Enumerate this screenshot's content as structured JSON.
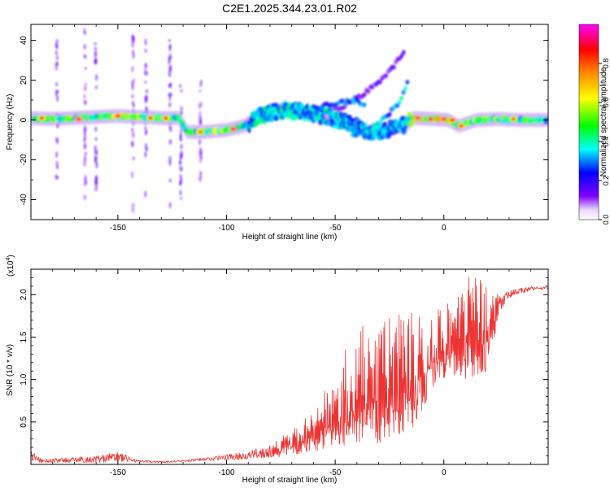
{
  "figure": {
    "title": "C2E1.2025.344.23.01.R02"
  },
  "chart_data": [
    {
      "type": "heatmap",
      "title": "C2E1.2025.344.23.01.R02",
      "xlabel": "Height of straight line (km)",
      "ylabel": "Frequency (Hz)",
      "xlim": [
        -190,
        48
      ],
      "ylim": [
        -50,
        48
      ],
      "xticks": [
        -150,
        -100,
        -50,
        0
      ],
      "xtick_labels": [
        "-150",
        "-100",
        "-50",
        "0"
      ],
      "yticks": [
        -40,
        -20,
        0,
        20,
        40
      ],
      "ytick_labels": [
        "-40",
        "-20",
        "0",
        "20",
        "40"
      ],
      "grid": false,
      "colorbar": {
        "label": "Normalized spectral amplitude",
        "range": [
          0,
          1
        ],
        "ticks": [
          0.0,
          0.2,
          0.4,
          0.6,
          0.8
        ],
        "tick_labels": [
          "0.0",
          "0.2",
          "0.4",
          "0.6",
          "0.8"
        ],
        "colormap": [
          "#ffffff",
          "#7f00ff",
          "#0000ff",
          "#00ffff",
          "#00ff00",
          "#ffff00",
          "#ff8000",
          "#ff0000",
          "#ff00ff"
        ]
      },
      "ridge": [
        {
          "x": -190,
          "y": 1.0,
          "a": 0.5
        },
        {
          "x": -180,
          "y": 0.5,
          "a": 0.55
        },
        {
          "x": -170,
          "y": 1.0,
          "a": 0.55
        },
        {
          "x": -160,
          "y": 1.5,
          "a": 0.5
        },
        {
          "x": -150,
          "y": 2.0,
          "a": 0.6
        },
        {
          "x": -140,
          "y": 1.5,
          "a": 0.55
        },
        {
          "x": -130,
          "y": 1.0,
          "a": 0.6
        },
        {
          "x": -122,
          "y": 1.0,
          "a": 0.45
        },
        {
          "x": -118,
          "y": -6.0,
          "a": 0.45
        },
        {
          "x": -110,
          "y": -6.0,
          "a": 0.55
        },
        {
          "x": -100,
          "y": -5.0,
          "a": 0.55
        },
        {
          "x": -92,
          "y": -3.0,
          "a": 0.4
        },
        {
          "x": -85,
          "y": 2.0,
          "a": 0.4
        },
        {
          "x": -75,
          "y": 5.0,
          "a": 0.4
        },
        {
          "x": -65,
          "y": 4.0,
          "a": 0.35
        },
        {
          "x": -55,
          "y": 2.0,
          "a": 0.4
        },
        {
          "x": -45,
          "y": -1.0,
          "a": 0.35
        },
        {
          "x": -35,
          "y": -6.0,
          "a": 0.35
        },
        {
          "x": -25,
          "y": -5.0,
          "a": 0.35
        },
        {
          "x": -17,
          "y": -2.0,
          "a": 0.35
        },
        {
          "x": -14,
          "y": 1.0,
          "a": 0.7
        },
        {
          "x": -5,
          "y": 0.5,
          "a": 0.7
        },
        {
          "x": 2,
          "y": 0.0,
          "a": 0.65
        },
        {
          "x": 7,
          "y": -3.0,
          "a": 0.55
        },
        {
          "x": 15,
          "y": 0.0,
          "a": 0.55
        },
        {
          "x": 25,
          "y": 0.5,
          "a": 0.55
        },
        {
          "x": 35,
          "y": 0.0,
          "a": 0.5
        },
        {
          "x": 48,
          "y": 0.0,
          "a": 0.45
        }
      ],
      "branches": [
        {
          "x": [
            -50,
            -38,
            -30,
            -24,
            -18
          ],
          "y": [
            5,
            12,
            19,
            26,
            34
          ],
          "a": 0.15
        },
        {
          "x": [
            -42,
            -32,
            -26,
            -20,
            -16
          ],
          "y": [
            -8,
            -4,
            2,
            10,
            20
          ],
          "a": 0.35
        },
        {
          "x": [
            -60,
            -50,
            -42,
            -36
          ],
          "y": [
            6,
            8,
            10,
            8
          ],
          "a": 0.3
        }
      ],
      "hotspots": [
        {
          "x": -185,
          "y": 1,
          "a": 0.85
        },
        {
          "x": -168,
          "y": 0.5,
          "a": 0.95
        },
        {
          "x": -150,
          "y": 2,
          "a": 0.9
        },
        {
          "x": -135,
          "y": 1,
          "a": 0.85
        },
        {
          "x": -128,
          "y": 1,
          "a": 0.85
        },
        {
          "x": -112,
          "y": -6,
          "a": 0.8
        },
        {
          "x": -97,
          "y": -4.5,
          "a": 0.95
        },
        {
          "x": -12,
          "y": 1,
          "a": 0.95
        },
        {
          "x": -6,
          "y": 0.5,
          "a": 0.95
        },
        {
          "x": 0,
          "y": 0.5,
          "a": 0.95
        },
        {
          "x": 4,
          "y": 0,
          "a": 0.9
        },
        {
          "x": 8,
          "y": -3,
          "a": 0.85
        },
        {
          "x": 32,
          "y": 0.5,
          "a": 0.8
        }
      ],
      "vertical_streaks": [
        {
          "x": -178,
          "y": [
            -30,
            40
          ],
          "a": 0.12
        },
        {
          "x": -165,
          "y": [
            -40,
            45
          ],
          "a": 0.1
        },
        {
          "x": -160,
          "y": [
            -48,
            45
          ],
          "a": 0.12
        },
        {
          "x": -143,
          "y": [
            -45,
            45
          ],
          "a": 0.1
        },
        {
          "x": -137,
          "y": [
            -40,
            40
          ],
          "a": 0.12
        },
        {
          "x": -126,
          "y": [
            -48,
            45
          ],
          "a": 0.12
        },
        {
          "x": -121,
          "y": [
            -40,
            20
          ],
          "a": 0.12
        },
        {
          "x": -112,
          "y": [
            -30,
            20
          ],
          "a": 0.08
        }
      ]
    },
    {
      "type": "line",
      "xlabel": "Height of straight line (km)",
      "ylabel": "SNR (10 * v/v)",
      "y_multiplier": "(x10",
      "y_multiplier_exp": "4",
      "xlim": [
        -190,
        48
      ],
      "ylim": [
        0,
        2.3
      ],
      "xticks": [
        -150,
        -100,
        -50,
        0
      ],
      "xtick_labels": [
        "-150",
        "-100",
        "-50",
        "0"
      ],
      "yticks": [
        0.5,
        1.0,
        1.5,
        2.0
      ],
      "ytick_labels": [
        "0.5",
        "1.0",
        "1.5",
        "2.0"
      ],
      "grid": false,
      "color": "#ee3333",
      "envelope": {
        "x": [
          -190,
          -185,
          -175,
          -160,
          -150,
          -140,
          -130,
          -120,
          -110,
          -100,
          -90,
          -80,
          -70,
          -65,
          -60,
          -55,
          -50,
          -45,
          -40,
          -35,
          -30,
          -25,
          -20,
          -15,
          -10,
          -5,
          0,
          5,
          10,
          15,
          20,
          25,
          30,
          35,
          40,
          48
        ],
        "lower": [
          0.02,
          0.02,
          0.02,
          0.02,
          0.03,
          0.02,
          0.02,
          0.03,
          0.04,
          0.05,
          0.06,
          0.08,
          0.1,
          0.12,
          0.15,
          0.18,
          0.2,
          0.22,
          0.25,
          0.25,
          0.25,
          0.25,
          0.3,
          0.4,
          0.6,
          0.9,
          1.0,
          1.0,
          1.0,
          1.0,
          1.1,
          1.7,
          1.95,
          2.0,
          2.05,
          2.06
        ],
        "upper": [
          0.18,
          0.06,
          0.08,
          0.1,
          0.15,
          0.05,
          0.04,
          0.05,
          0.08,
          0.12,
          0.15,
          0.25,
          0.4,
          0.5,
          0.75,
          0.9,
          1.15,
          1.4,
          1.6,
          1.7,
          1.6,
          1.75,
          1.8,
          1.8,
          1.9,
          1.85,
          1.9,
          2.0,
          2.3,
          2.25,
          2.1,
          2.0,
          2.05,
          2.08,
          2.1,
          2.1
        ]
      }
    }
  ]
}
